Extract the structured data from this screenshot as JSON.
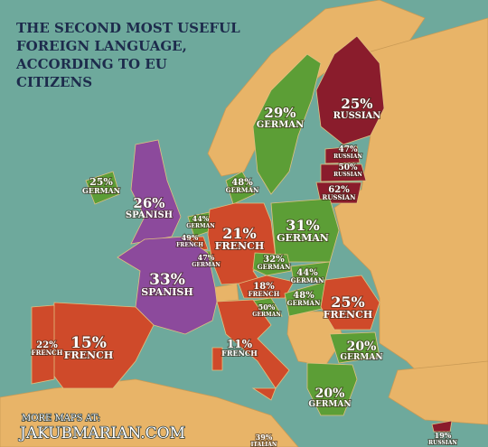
{
  "header": {
    "title_lines": [
      "THE SECOND MOST USEFUL",
      "FOREIGN LANGUAGE,",
      "ACCORDING TO EU",
      "CITIZENS"
    ]
  },
  "regions": [
    {
      "value": "29%",
      "language": "GERMAN"
    },
    {
      "value": "25%",
      "language": "RUSSIAN"
    },
    {
      "value": "47%",
      "language": "RUSSIAN"
    },
    {
      "value": "50%",
      "language": "RUSSIAN"
    },
    {
      "value": "62%",
      "language": "RUSSIAN"
    },
    {
      "value": "48%",
      "language": "GERMAN"
    },
    {
      "value": "25%",
      "language": "GERMAN"
    },
    {
      "value": "26%",
      "language": "SPANISH"
    },
    {
      "value": "44%",
      "language": "GERMAN"
    },
    {
      "value": "49%",
      "language": "FRENCH"
    },
    {
      "value": "47%",
      "language": "GERMAN"
    },
    {
      "value": "21%",
      "language": "FRENCH"
    },
    {
      "value": "31%",
      "language": "GERMAN"
    },
    {
      "value": "32%",
      "language": "GERMAN"
    },
    {
      "value": "44%",
      "language": "GERMAN"
    },
    {
      "value": "18%",
      "language": "FRENCH"
    },
    {
      "value": "48%",
      "language": "GERMAN"
    },
    {
      "value": "50%",
      "language": "GERMAN"
    },
    {
      "value": "33%",
      "language": "SPANISH"
    },
    {
      "value": "25%",
      "language": "FRENCH"
    },
    {
      "value": "15%",
      "language": "FRENCH"
    },
    {
      "value": "22%",
      "language": "FRENCH"
    },
    {
      "value": "11%",
      "language": "FRENCH"
    },
    {
      "value": "20%",
      "language": "GERMAN"
    },
    {
      "value": "20%",
      "language": "GERMAN"
    },
    {
      "value": "39%",
      "language": "ITALIAN"
    },
    {
      "value": "19%",
      "language": "RUSSIAN"
    }
  ],
  "footer": {
    "line1": "MORE MAPS AT:",
    "line2": "JAKUBMARIAN.COM"
  }
}
